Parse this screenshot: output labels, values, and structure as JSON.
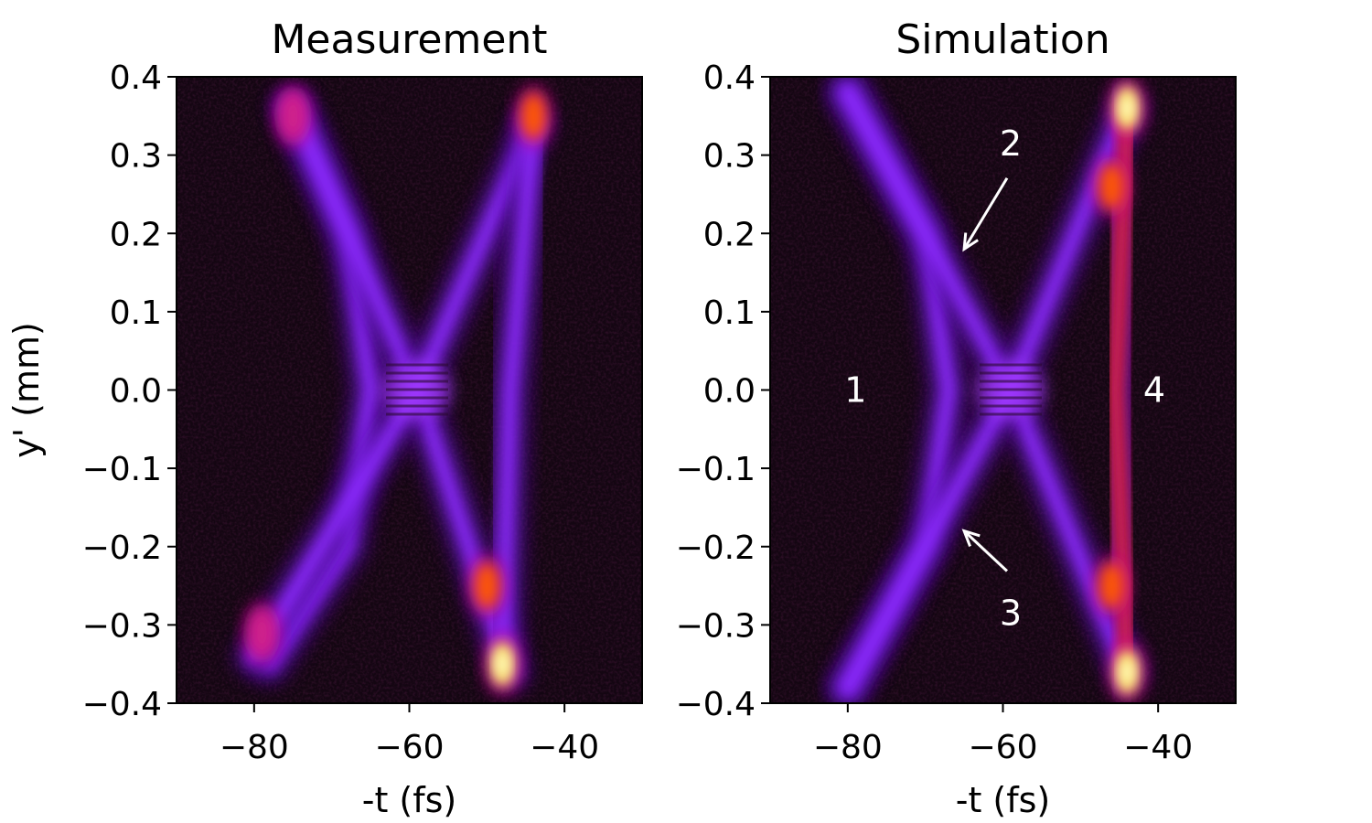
{
  "figure": {
    "description_free": true
  },
  "chart_data": [
    {
      "type": "heatmap",
      "title": "Measurement",
      "xlabel": "-t (fs)",
      "ylabel": "y' (mm)",
      "xlim": [
        -90,
        -30
      ],
      "ylim": [
        -0.4,
        0.4
      ],
      "xticks": [
        -80,
        -60,
        -40
      ],
      "xtick_labels": [
        "−80",
        "−60",
        "−40"
      ],
      "yticks": [
        0.4,
        0.3,
        0.2,
        0.1,
        0.0,
        -0.1,
        -0.2,
        -0.3,
        -0.4
      ],
      "ytick_labels": [
        "0.4",
        "0.3",
        "0.2",
        "0.1",
        "0.0",
        "−0.1",
        "−0.2",
        "−0.3",
        "−0.4"
      ],
      "colormap": "gnuplot",
      "features": [
        {
          "name": "curved band",
          "points": [
            [
              -75,
              0.36
            ],
            [
              -68,
              0.2
            ],
            [
              -65,
              0.0
            ],
            [
              -68,
              -0.2
            ],
            [
              -78,
              -0.35
            ]
          ]
        },
        {
          "name": "diagonal band A",
          "points": [
            [
              -75,
              0.36
            ],
            [
              -59,
              0.0
            ],
            [
              -47,
              -0.36
            ]
          ]
        },
        {
          "name": "diagonal band B",
          "points": [
            [
              -44,
              0.34
            ],
            [
              -59,
              0.0
            ],
            [
              -80,
              -0.34
            ]
          ]
        },
        {
          "name": "vertical band",
          "points": [
            [
              -44,
              0.34
            ],
            [
              -47,
              0.0
            ],
            [
              -48,
              -0.34
            ]
          ]
        }
      ],
      "hotspots": [
        {
          "x": -75,
          "y": 0.35,
          "intensity": 0.55
        },
        {
          "x": -44,
          "y": 0.35,
          "intensity": 0.7
        },
        {
          "x": -48,
          "y": -0.35,
          "intensity": 0.92
        },
        {
          "x": -50,
          "y": -0.25,
          "intensity": 0.62
        },
        {
          "x": -79,
          "y": -0.31,
          "intensity": 0.5
        }
      ]
    },
    {
      "type": "heatmap",
      "title": "Simulation",
      "xlabel": "-t (fs)",
      "ylabel": "",
      "xlim": [
        -90,
        -30
      ],
      "ylim": [
        -0.4,
        0.4
      ],
      "xticks": [
        -80,
        -60,
        -40
      ],
      "xtick_labels": [
        "−80",
        "−60",
        "−40"
      ],
      "yticks": [
        0.4,
        0.3,
        0.2,
        0.1,
        0.0,
        -0.1,
        -0.2,
        -0.3,
        -0.4
      ],
      "ytick_labels": [
        "0.4",
        "0.3",
        "0.2",
        "0.1",
        "0.0",
        "−0.1",
        "−0.2",
        "−0.3",
        "−0.4"
      ],
      "colormap": "gnuplot",
      "features": [
        {
          "name": "curved band",
          "points": [
            [
              -80,
              0.38
            ],
            [
              -70,
              0.2
            ],
            [
              -67,
              0.0
            ],
            [
              -70,
              -0.2
            ],
            [
              -80,
              -0.38
            ]
          ]
        },
        {
          "name": "diagonal band A",
          "points": [
            [
              -80,
              0.38
            ],
            [
              -59,
              0.0
            ],
            [
              -44,
              -0.36
            ]
          ]
        },
        {
          "name": "diagonal band B",
          "points": [
            [
              -44,
              0.36
            ],
            [
              -59,
              0.0
            ],
            [
              -80,
              -0.38
            ]
          ]
        },
        {
          "name": "vertical band",
          "points": [
            [
              -44,
              0.36
            ],
            [
              -45.5,
              0.0
            ],
            [
              -44,
              -0.36
            ]
          ]
        }
      ],
      "hotspots": [
        {
          "x": -44,
          "y": 0.36,
          "intensity": 0.95
        },
        {
          "x": -44,
          "y": -0.36,
          "intensity": 0.95
        },
        {
          "x": -46,
          "y": 0.26,
          "intensity": 0.6
        },
        {
          "x": -46,
          "y": -0.25,
          "intensity": 0.6
        }
      ],
      "annotations": [
        {
          "text": "1",
          "x": -79,
          "y": 0.0
        },
        {
          "text": "2",
          "x": -59,
          "y": 0.315,
          "arrow_to": [
            -65,
            0.18
          ]
        },
        {
          "text": "3",
          "x": -59,
          "y": -0.285,
          "arrow_to": [
            -65,
            -0.18
          ]
        },
        {
          "text": "4",
          "x": -40.5,
          "y": 0.0
        }
      ]
    }
  ]
}
